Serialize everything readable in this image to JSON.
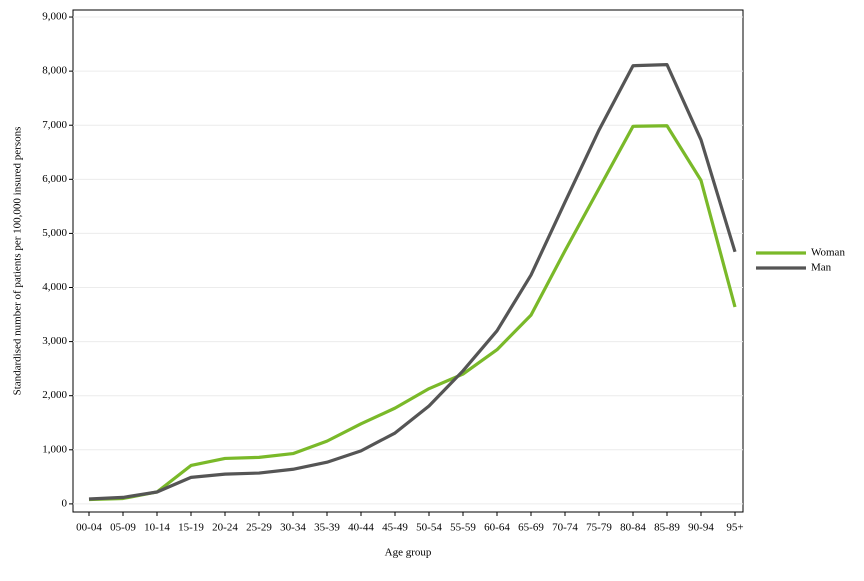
{
  "chart_data": {
    "type": "line",
    "x_label": "Age group",
    "y_label": "Standardised number of patients per 100,000 insured persons",
    "categories": [
      "00-04",
      "05-09",
      "10-14",
      "15-19",
      "20-24",
      "25-29",
      "30-34",
      "35-39",
      "40-44",
      "45-49",
      "50-54",
      "55-59",
      "60-64",
      "65-69",
      "70-74",
      "75-79",
      "80-84",
      "85-89",
      "90-94",
      "95+"
    ],
    "series": [
      {
        "name": "Woman",
        "color": "#7ab929",
        "values": [
          80,
          100,
          220,
          710,
          840,
          860,
          930,
          1160,
          1480,
          1770,
          2130,
          2400,
          2850,
          3490,
          4680,
          5830,
          6980,
          6990,
          5980,
          3640
        ]
      },
      {
        "name": "Man",
        "color": "#555555",
        "values": [
          90,
          120,
          220,
          490,
          550,
          570,
          640,
          770,
          980,
          1310,
          1810,
          2460,
          3200,
          4230,
          5580,
          6910,
          8100,
          8120,
          6730,
          4660
        ]
      }
    ],
    "ylim": [
      -150,
      9130
    ],
    "yticks": [
      0,
      {
        "value": 1000,
        "label": "1,000"
      },
      {
        "value": 2000,
        "label": "2,000"
      },
      {
        "value": 3000,
        "label": "3,000"
      },
      {
        "value": 4000,
        "label": "4,000"
      },
      {
        "value": 5000,
        "label": "5,000"
      },
      {
        "value": 6000,
        "label": "6,000"
      },
      {
        "value": 7000,
        "label": "7,000"
      },
      {
        "value": 8000,
        "label": "8,000"
      },
      {
        "value": 9000,
        "label": "9,000"
      }
    ],
    "grid": true,
    "legend": "right"
  }
}
